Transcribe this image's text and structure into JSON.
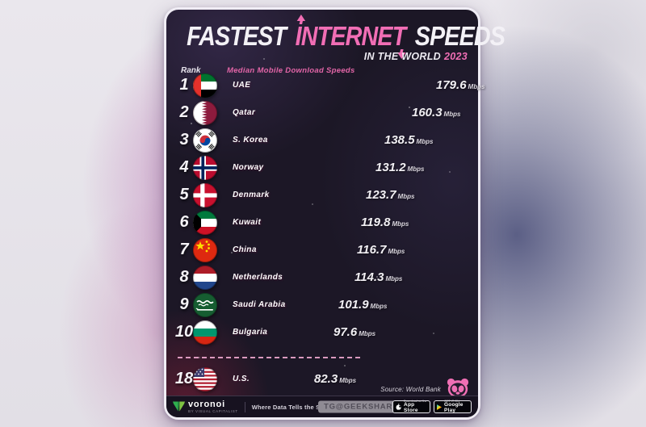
{
  "title": {
    "part1": "FASTEST",
    "part2": "INTERNET",
    "part3": "SPEEDS",
    "subtitle_text": "IN THE WORLD",
    "subtitle_year": "2023"
  },
  "labels": {
    "rank_header": "Rank",
    "metric_header": "Median Mobile Download Speeds"
  },
  "chart_data": {
    "type": "bar",
    "title": "Fastest Internet Speeds in the World 2023",
    "metric": "Median Mobile Download Speeds",
    "unit": "Mbps",
    "orientation": "horizontal",
    "max_value": 179.6,
    "rows": [
      {
        "rank": "1",
        "country": "UAE",
        "value": 179.6,
        "flag": "uae"
      },
      {
        "rank": "2",
        "country": "Qatar",
        "value": 160.3,
        "flag": "qatar"
      },
      {
        "rank": "3",
        "country": "S. Korea",
        "value": 138.5,
        "flag": "skorea"
      },
      {
        "rank": "4",
        "country": "Norway",
        "value": 131.2,
        "flag": "norway"
      },
      {
        "rank": "5",
        "country": "Denmark",
        "value": 123.7,
        "flag": "denmark"
      },
      {
        "rank": "6",
        "country": "Kuwait",
        "value": 119.8,
        "flag": "kuwait"
      },
      {
        "rank": "7",
        "country": "China",
        "value": 116.7,
        "flag": "china"
      },
      {
        "rank": "8",
        "country": "Netherlands",
        "value": 114.3,
        "flag": "netherlands"
      },
      {
        "rank": "9",
        "country": "Saudi Arabia",
        "value": 101.9,
        "flag": "saudi"
      },
      {
        "rank": "10",
        "country": "Bulgaria",
        "value": 97.6,
        "flag": "bulgaria"
      },
      {
        "rank": "18",
        "country": "U.S.",
        "value": 82.3,
        "flag": "us",
        "separated": true
      }
    ]
  },
  "source": {
    "label": "Source: World Bank"
  },
  "footer": {
    "brand": "voronoi",
    "brand_sub": "BY VISUAL CAPITALIST",
    "tagline": "Where Data Tells the Story",
    "watermark": "TG@GEEKSHARE",
    "appstore_line1": "Download on the",
    "appstore_line2": "App Store",
    "gplay_line1": "GET IT ON",
    "gplay_line2": "Google Play"
  },
  "theme": {
    "accent_pink": "#f16eb5",
    "bar_gradient": [
      "#8c4a7d",
      "#db74a8",
      "#f0a2cb",
      "#fff3f9"
    ],
    "card_bg": "#1c1726",
    "voronoi_green": "#35b24a"
  }
}
